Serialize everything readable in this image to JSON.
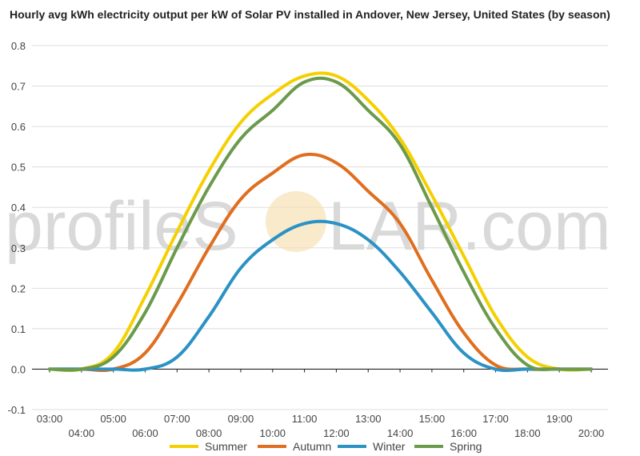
{
  "title": "Hourly avg kWh electricity output per kW of Solar PV installed in Andover, New Jersey, United States (by season)",
  "watermark": {
    "text_left": "profileS",
    "text_right": "LAR.com"
  },
  "colors": {
    "summer": "#f5d000",
    "autumn": "#e06e1e",
    "winter": "#2a92c4",
    "spring": "#6b9a4c",
    "grid": "#dddddd",
    "zero_line": "#222222"
  },
  "chart_data": {
    "type": "line",
    "title": "Hourly avg kWh electricity output per kW of Solar PV installed in Andover, New Jersey, United States (by season)",
    "xlabel": "",
    "ylabel": "",
    "ylim": [
      -0.1,
      0.8
    ],
    "yticks": [
      -0.1,
      0.0,
      0.1,
      0.2,
      0.3,
      0.4,
      0.5,
      0.6,
      0.7,
      0.8
    ],
    "ytick_labels": [
      "-0.1",
      "0.0",
      "0.1",
      "0.2",
      "0.3",
      "0.4",
      "0.5",
      "0.6",
      "0.7",
      "0.8"
    ],
    "categories": [
      "03:00",
      "04:00",
      "05:00",
      "06:00",
      "07:00",
      "08:00",
      "09:00",
      "10:00",
      "11:00",
      "12:00",
      "13:00",
      "14:00",
      "15:00",
      "16:00",
      "17:00",
      "18:00",
      "19:00",
      "20:00"
    ],
    "grid": true,
    "legend_position": "bottom",
    "series": [
      {
        "name": "Summer",
        "key": "summer",
        "values": [
          0.0,
          0.0,
          0.04,
          0.18,
          0.34,
          0.49,
          0.61,
          0.68,
          0.725,
          0.725,
          0.665,
          0.57,
          0.43,
          0.28,
          0.13,
          0.03,
          0.0,
          0.0
        ]
      },
      {
        "name": "Autumn",
        "key": "autumn",
        "values": [
          0.0,
          0.0,
          0.0,
          0.04,
          0.16,
          0.3,
          0.42,
          0.485,
          0.53,
          0.51,
          0.44,
          0.36,
          0.22,
          0.09,
          0.01,
          0.0,
          0.0,
          0.0
        ]
      },
      {
        "name": "Winter",
        "key": "winter",
        "values": [
          0.0,
          0.0,
          0.0,
          0.0,
          0.03,
          0.13,
          0.25,
          0.32,
          0.36,
          0.36,
          0.32,
          0.24,
          0.14,
          0.04,
          0.0,
          0.0,
          0.0,
          0.0
        ]
      },
      {
        "name": "Spring",
        "key": "spring",
        "values": [
          0.0,
          0.0,
          0.03,
          0.14,
          0.3,
          0.45,
          0.57,
          0.64,
          0.71,
          0.71,
          0.64,
          0.555,
          0.4,
          0.24,
          0.1,
          0.01,
          0.0,
          0.0
        ]
      }
    ]
  }
}
